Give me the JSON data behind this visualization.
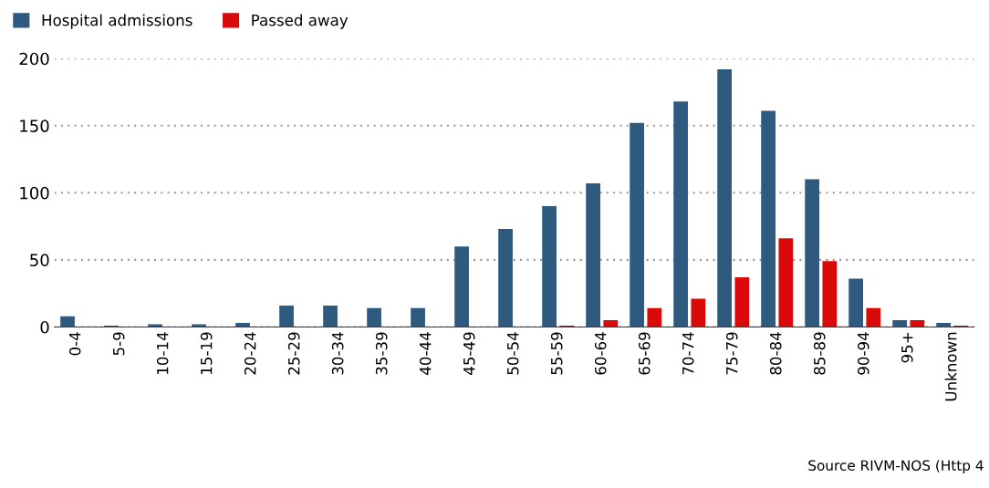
{
  "chart_data": {
    "type": "bar",
    "categories": [
      "0-4",
      "5-9",
      "10-14",
      "15-19",
      "20-24",
      "25-29",
      "30-34",
      "35-39",
      "40-44",
      "45-49",
      "50-54",
      "55-59",
      "60-64",
      "65-69",
      "70-74",
      "75-79",
      "80-84",
      "85-89",
      "90-94",
      "95+",
      "Unknown"
    ],
    "series": [
      {
        "name": "Hospital admissions",
        "color": "#2e5a80",
        "values": [
          8,
          1,
          2,
          2,
          3,
          16,
          16,
          14,
          14,
          60,
          73,
          90,
          107,
          152,
          168,
          192,
          161,
          110,
          36,
          5,
          3
        ]
      },
      {
        "name": "Passed away",
        "color": "#d80a0a",
        "values": [
          0,
          0,
          0,
          0,
          0,
          0,
          0,
          0,
          0,
          0,
          0,
          1,
          5,
          14,
          21,
          37,
          66,
          49,
          14,
          5,
          1
        ]
      }
    ],
    "ylim": [
      0,
      200
    ],
    "yticks": [
      0,
      50,
      100,
      150,
      200
    ],
    "grid": "y",
    "legend": "top left",
    "annotations": [
      "Source RIVM-NOS (Http 4"
    ]
  }
}
